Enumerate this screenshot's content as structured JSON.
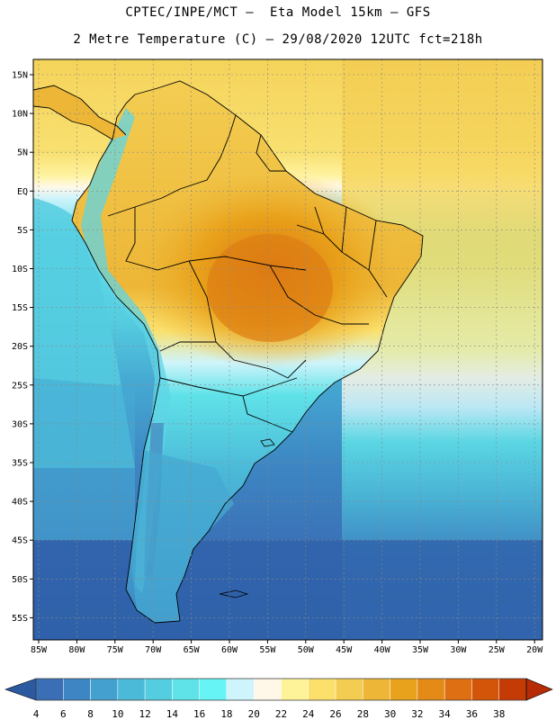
{
  "header": {
    "line1": "CPTEC/INPE/MCT –  Eta Model 15km – GFS",
    "line2": "2 Metre Temperature (C) – 29/08/2020 12UTC fct=218h"
  },
  "axes": {
    "lat_labels": [
      "15N",
      "10N",
      "5N",
      "EQ",
      "5S",
      "10S",
      "15S",
      "20S",
      "25S",
      "30S",
      "35S",
      "40S",
      "45S",
      "50S",
      "55S"
    ],
    "lon_labels": [
      "85W",
      "80W",
      "75W",
      "70W",
      "65W",
      "60W",
      "55W",
      "50W",
      "45W",
      "40W",
      "35W",
      "30W",
      "25W",
      "20W"
    ]
  },
  "colorbar": {
    "labels": [
      "4",
      "6",
      "8",
      "10",
      "12",
      "14",
      "16",
      "18",
      "20",
      "22",
      "24",
      "26",
      "28",
      "30",
      "32",
      "34",
      "36",
      "38"
    ],
    "colors": [
      "#3a6fb5",
      "#3d86c3",
      "#43a0cf",
      "#4bb9d8",
      "#55cde0",
      "#5fe2e8",
      "#66f4f4",
      "#cff4fb",
      "#fff7e8",
      "#fff39a",
      "#fbe06b",
      "#f3cd52",
      "#edb636",
      "#e9a21b",
      "#e38a17",
      "#de6f12",
      "#d35509",
      "#c43b06"
    ],
    "under_color": "#2c5aa0",
    "over_color": "#b52c06"
  }
}
